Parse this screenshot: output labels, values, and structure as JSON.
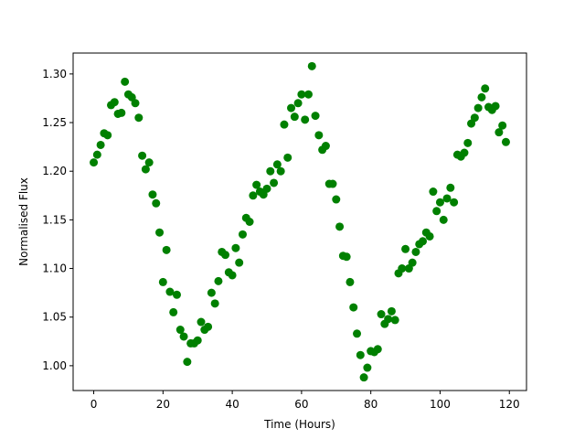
{
  "chart_data": {
    "type": "scatter",
    "xlabel": "Time (Hours)",
    "ylabel": "Normalised Flux",
    "xlim": [
      -5.95,
      124.95
    ],
    "ylim": [
      0.9745,
      1.3215
    ],
    "xticks": [
      0,
      20,
      40,
      60,
      80,
      100,
      120
    ],
    "yticks": [
      1.0,
      1.05,
      1.1,
      1.15,
      1.2,
      1.25,
      1.3
    ],
    "xtick_labels": [
      "0",
      "20",
      "40",
      "60",
      "80",
      "100",
      "120"
    ],
    "ytick_labels": [
      "1.00",
      "1.05",
      "1.10",
      "1.15",
      "1.20",
      "1.25",
      "1.30"
    ],
    "grid": false,
    "marker_color": "#008000",
    "series": [
      {
        "x": [
          0,
          1,
          2,
          3,
          4,
          5,
          6,
          7,
          8,
          9,
          10,
          11,
          12,
          13,
          14,
          15,
          16,
          17,
          18,
          19,
          20,
          21,
          22,
          23,
          24,
          25,
          26,
          27,
          28,
          29,
          30,
          31,
          32,
          33,
          34,
          35,
          36,
          37,
          38,
          39,
          40,
          41,
          42,
          43,
          44,
          45,
          46,
          47,
          48,
          49,
          50,
          51,
          52,
          53,
          54,
          55,
          56,
          57,
          58,
          59,
          60,
          61,
          62,
          63,
          64,
          65,
          66,
          67,
          68,
          69,
          70,
          71,
          72,
          73,
          74,
          75,
          76,
          77,
          78,
          79,
          80,
          81,
          82,
          83,
          84,
          85,
          86,
          87,
          88,
          89,
          90,
          91,
          92,
          93,
          94,
          95,
          96,
          97,
          98,
          99,
          100,
          101,
          102,
          103,
          104,
          105,
          106,
          107,
          108,
          109,
          110,
          111,
          112,
          113,
          114,
          115,
          116,
          117,
          118,
          119
        ],
        "y": [
          1.209,
          1.217,
          1.227,
          1.239,
          1.237,
          1.268,
          1.271,
          1.259,
          1.26,
          1.292,
          1.279,
          1.276,
          1.27,
          1.255,
          1.216,
          1.202,
          1.209,
          1.176,
          1.167,
          1.137,
          1.086,
          1.119,
          1.076,
          1.055,
          1.073,
          1.037,
          1.03,
          1.004,
          1.023,
          1.023,
          1.026,
          1.045,
          1.037,
          1.04,
          1.075,
          1.064,
          1.087,
          1.117,
          1.114,
          1.096,
          1.093,
          1.121,
          1.106,
          1.135,
          1.152,
          1.148,
          1.175,
          1.186,
          1.179,
          1.176,
          1.182,
          1.2,
          1.188,
          1.207,
          1.2,
          1.248,
          1.214,
          1.265,
          1.256,
          1.27,
          1.279,
          1.253,
          1.279,
          1.308,
          1.257,
          1.237,
          1.222,
          1.226,
          1.187,
          1.187,
          1.171,
          1.143,
          1.113,
          1.112,
          1.086,
          1.06,
          1.033,
          1.011,
          0.988,
          0.998,
          1.015,
          1.014,
          1.017,
          1.053,
          1.043,
          1.048,
          1.056,
          1.047,
          1.095,
          1.1,
          1.12,
          1.1,
          1.106,
          1.117,
          1.125,
          1.128,
          1.137,
          1.133,
          1.179,
          1.159,
          1.168,
          1.15,
          1.172,
          1.183,
          1.168,
          1.217,
          1.215,
          1.219,
          1.229,
          1.249,
          1.255,
          1.265,
          1.276,
          1.285,
          1.266,
          1.263,
          1.267,
          1.24,
          1.247,
          1.23
        ]
      }
    ]
  }
}
